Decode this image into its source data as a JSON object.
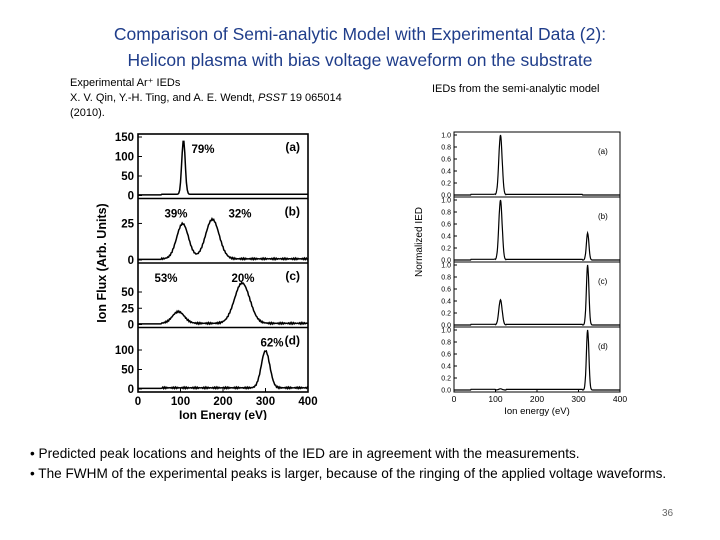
{
  "slide": {
    "title_line1": "Comparison of Semi-analytic Model with Experimental Data (2):",
    "title_line2": "Helicon plasma with bias voltage waveform on the substrate",
    "title_color": "#1f3d8a",
    "left_caption": {
      "line1": "Experimental Ar⁺ IEDs",
      "line2_authors": "X. V. Qin, Y.-H. Ting, and A. E. Wendt, ",
      "line2_journal": "PSST",
      "line2_ref": " 19 065014",
      "line3": "(2010)."
    },
    "right_caption": "IEDs from the semi-analytic model",
    "bullets": [
      "• Predicted peak locations and heights of the IED are in agreement with the measurements.",
      "• The FWHM of the experimental peaks is larger, because of the ringing of the applied voltage waveforms."
    ],
    "page_number": "36"
  },
  "chart_data": [
    {
      "type": "line",
      "xlabel": "Ion Energy (eV)",
      "ylabel": "Ion Flux (Arb. Units)",
      "xlim": [
        0,
        400
      ],
      "x_ticks": [
        "0",
        "100",
        "200",
        "300",
        "400"
      ],
      "panels": [
        {
          "label": "(a)",
          "ylim": [
            0,
            150
          ],
          "y_ticks": [
            "0",
            "50",
            "100",
            "150"
          ],
          "annotations": [
            "79%"
          ],
          "peaks": [
            {
              "center": 107,
              "width": 4,
              "height": 140
            }
          ]
        },
        {
          "label": "(b)",
          "ylim": [
            0,
            40
          ],
          "y_ticks": [
            "0",
            "25"
          ],
          "annotations": [
            "39%",
            "32%"
          ],
          "peaks": [
            {
              "center": 105,
              "width": 14,
              "height": 24
            },
            {
              "center": 175,
              "width": 16,
              "height": 27
            }
          ]
        },
        {
          "label": "(c)",
          "ylim": [
            0,
            90
          ],
          "y_ticks": [
            "0",
            "25",
            "50"
          ],
          "annotations": [
            "20%",
            "53%"
          ],
          "peaks": [
            {
              "center": 95,
              "width": 14,
              "height": 18
            },
            {
              "center": 245,
              "width": 18,
              "height": 62
            }
          ]
        },
        {
          "label": "(d)",
          "ylim": [
            0,
            150
          ],
          "y_ticks": [
            "0",
            "50",
            "100"
          ],
          "annotations": [
            "62%"
          ],
          "peaks": [
            {
              "center": 300,
              "width": 10,
              "height": 95
            }
          ]
        }
      ]
    },
    {
      "type": "line",
      "xlabel": "Ion energy (eV)",
      "ylabel": "Normalized IED",
      "xlim": [
        0,
        400
      ],
      "x_ticks": [
        "0",
        "100",
        "200",
        "300",
        "400"
      ],
      "panels": [
        {
          "label": "(a)",
          "ylim": [
            0,
            1.0
          ],
          "y_ticks": [
            "0.0",
            "0.2",
            "0.4",
            "0.6",
            "0.8",
            "1.0"
          ],
          "peaks": [
            {
              "center": 112,
              "width": 4,
              "height": 1.0
            },
            {
              "center": 322,
              "width": 3,
              "height": 0.0
            }
          ]
        },
        {
          "label": "(b)",
          "ylim": [
            0,
            1.0
          ],
          "y_ticks": [
            "0.0",
            "0.2",
            "0.4",
            "0.6",
            "0.8",
            "1.0"
          ],
          "peaks": [
            {
              "center": 112,
              "width": 4,
              "height": 1.0
            },
            {
              "center": 322,
              "width": 3,
              "height": 0.45
            }
          ]
        },
        {
          "label": "(c)",
          "ylim": [
            0,
            1.0
          ],
          "y_ticks": [
            "0.0",
            "0.2",
            "0.4",
            "0.6",
            "0.8",
            "1.0"
          ],
          "peaks": [
            {
              "center": 112,
              "width": 4,
              "height": 0.42
            },
            {
              "center": 322,
              "width": 3,
              "height": 1.0
            }
          ]
        },
        {
          "label": "(d)",
          "ylim": [
            0,
            1.0
          ],
          "y_ticks": [
            "0.0",
            "0.2",
            "0.4",
            "0.6",
            "0.8",
            "1.0"
          ],
          "peaks": [
            {
              "center": 112,
              "width": 4,
              "height": 0.02
            },
            {
              "center": 322,
              "width": 3,
              "height": 1.0
            }
          ]
        }
      ]
    }
  ]
}
